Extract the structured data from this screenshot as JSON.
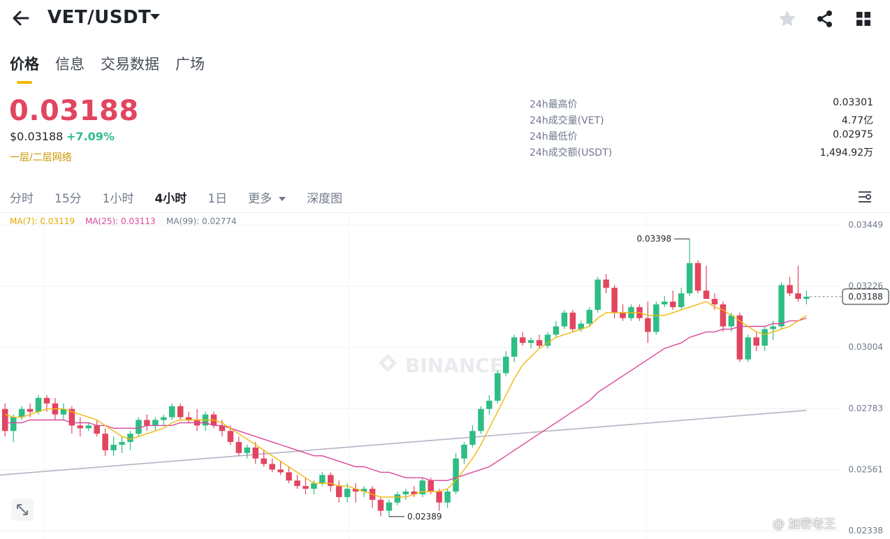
{
  "header": {
    "pair": "VET/USDT"
  },
  "tabs": [
    {
      "label": "价格",
      "active": true
    },
    {
      "label": "信息",
      "active": false
    },
    {
      "label": "交易数据",
      "active": false
    },
    {
      "label": "广场",
      "active": false
    }
  ],
  "price": {
    "last": "0.03188",
    "usd": "$0.03188",
    "change": "+7.09%",
    "network": "一层/二层网络"
  },
  "stats": [
    {
      "label": "24h最高价",
      "value": "0.03301"
    },
    {
      "label": "24h成交量(VET)",
      "value": "4.77亿"
    },
    {
      "label": "24h最低价",
      "value": "0.02975"
    },
    {
      "label": "24h成交额(USDT)",
      "value": "1,494.92万"
    }
  ],
  "intervals": [
    {
      "label": "分时",
      "active": false
    },
    {
      "label": "15分",
      "active": false
    },
    {
      "label": "1小时",
      "active": false
    },
    {
      "label": "4小时",
      "active": true
    },
    {
      "label": "1日",
      "active": false
    },
    {
      "label": "更多",
      "active": false
    },
    {
      "label": "深度图",
      "active": false
    }
  ],
  "ma": [
    {
      "label": "MA(7): 0.03119",
      "color": "#f0b90b"
    },
    {
      "label": "MA(25): 0.03113",
      "color": "#d9479a"
    },
    {
      "label": "MA(99): 0.02774",
      "color": "#8f8a9e"
    }
  ],
  "watermark_logo": "BINANCE",
  "footer_watermark": "@ 加密老王",
  "colors": {
    "up": "#2ebd85",
    "down": "#e2455f",
    "accent": "#f0b90b"
  },
  "chart_data": {
    "type": "candlestick",
    "y_ticks": [
      "0.03449",
      "0.03226",
      "0.03004",
      "0.02783",
      "0.02561",
      "0.02338"
    ],
    "y_range": [
      0.02338,
      0.03449
    ],
    "last_price_tag": "0.03188",
    "high_marker": {
      "label": "0.03398",
      "value": 0.03398
    },
    "low_marker": {
      "label": "0.02389",
      "value": 0.02389
    },
    "candles": [
      [
        0.0278,
        0.028,
        0.0268,
        0.027
      ],
      [
        0.027,
        0.0276,
        0.0266,
        0.0275
      ],
      [
        0.0275,
        0.0279,
        0.0274,
        0.0278
      ],
      [
        0.0278,
        0.028,
        0.0275,
        0.0277
      ],
      [
        0.0277,
        0.0283,
        0.0276,
        0.0282
      ],
      [
        0.0282,
        0.0283,
        0.0277,
        0.028
      ],
      [
        0.028,
        0.0282,
        0.0274,
        0.0276
      ],
      [
        0.0276,
        0.028,
        0.0274,
        0.0278
      ],
      [
        0.0278,
        0.0279,
        0.0269,
        0.0272
      ],
      [
        0.0272,
        0.0275,
        0.0268,
        0.0271
      ],
      [
        0.0271,
        0.0273,
        0.027,
        0.0272
      ],
      [
        0.0272,
        0.0274,
        0.0268,
        0.0269
      ],
      [
        0.0269,
        0.0271,
        0.0261,
        0.0263
      ],
      [
        0.0263,
        0.0268,
        0.0261,
        0.0265
      ],
      [
        0.0265,
        0.0268,
        0.0262,
        0.0266
      ],
      [
        0.0266,
        0.027,
        0.0263,
        0.0269
      ],
      [
        0.0269,
        0.0275,
        0.0268,
        0.0274
      ],
      [
        0.0274,
        0.0276,
        0.027,
        0.0272
      ],
      [
        0.0272,
        0.0275,
        0.027,
        0.0274
      ],
      [
        0.0274,
        0.0276,
        0.0272,
        0.0275
      ],
      [
        0.0275,
        0.028,
        0.0274,
        0.0279
      ],
      [
        0.0279,
        0.028,
        0.0274,
        0.0275
      ],
      [
        0.0275,
        0.0277,
        0.0273,
        0.0274
      ],
      [
        0.0274,
        0.0278,
        0.027,
        0.0272
      ],
      [
        0.0272,
        0.0277,
        0.027,
        0.0276
      ],
      [
        0.0276,
        0.0277,
        0.0271,
        0.0272
      ],
      [
        0.0272,
        0.0274,
        0.0268,
        0.027
      ],
      [
        0.027,
        0.0272,
        0.0265,
        0.0266
      ],
      [
        0.0266,
        0.0268,
        0.0261,
        0.0262
      ],
      [
        0.0262,
        0.0265,
        0.026,
        0.0264
      ],
      [
        0.0264,
        0.0266,
        0.0258,
        0.026
      ],
      [
        0.026,
        0.0263,
        0.0257,
        0.0258
      ],
      [
        0.0258,
        0.026,
        0.0255,
        0.0256
      ],
      [
        0.0256,
        0.0259,
        0.0254,
        0.0255
      ],
      [
        0.0255,
        0.0257,
        0.0251,
        0.0252
      ],
      [
        0.0252,
        0.0254,
        0.0249,
        0.025
      ],
      [
        0.025,
        0.0253,
        0.0247,
        0.0249
      ],
      [
        0.0249,
        0.0252,
        0.0247,
        0.0251
      ],
      [
        0.0251,
        0.0255,
        0.025,
        0.0254
      ],
      [
        0.0254,
        0.0255,
        0.0248,
        0.025
      ],
      [
        0.025,
        0.0252,
        0.0244,
        0.0246
      ],
      [
        0.0246,
        0.0251,
        0.0244,
        0.0249
      ],
      [
        0.0249,
        0.0251,
        0.0244,
        0.0248
      ],
      [
        0.0248,
        0.025,
        0.0246,
        0.0249
      ],
      [
        0.0249,
        0.025,
        0.0242,
        0.0245
      ],
      [
        0.0245,
        0.0246,
        0.0239,
        0.0241
      ],
      [
        0.0241,
        0.0245,
        0.02389,
        0.0244
      ],
      [
        0.0244,
        0.0248,
        0.0243,
        0.0247
      ],
      [
        0.0247,
        0.0249,
        0.0245,
        0.0248
      ],
      [
        0.0248,
        0.025,
        0.0246,
        0.0247
      ],
      [
        0.0247,
        0.0253,
        0.0246,
        0.0252
      ],
      [
        0.0252,
        0.0253,
        0.0247,
        0.0248
      ],
      [
        0.0248,
        0.0249,
        0.0241,
        0.0244
      ],
      [
        0.0244,
        0.0249,
        0.0242,
        0.0248
      ],
      [
        0.0248,
        0.0262,
        0.0247,
        0.026
      ],
      [
        0.026,
        0.0266,
        0.0258,
        0.0265
      ],
      [
        0.0265,
        0.0272,
        0.0264,
        0.027
      ],
      [
        0.027,
        0.0279,
        0.0269,
        0.0278
      ],
      [
        0.0278,
        0.0283,
        0.0276,
        0.0281
      ],
      [
        0.0281,
        0.0292,
        0.028,
        0.0291
      ],
      [
        0.0291,
        0.0299,
        0.029,
        0.0297
      ],
      [
        0.0297,
        0.0305,
        0.0295,
        0.0304
      ],
      [
        0.0304,
        0.0306,
        0.0301,
        0.0302
      ],
      [
        0.0302,
        0.0304,
        0.03,
        0.0303
      ],
      [
        0.0303,
        0.0305,
        0.03,
        0.0301
      ],
      [
        0.0301,
        0.0306,
        0.03,
        0.0305
      ],
      [
        0.0305,
        0.031,
        0.0304,
        0.0308
      ],
      [
        0.0308,
        0.0314,
        0.0307,
        0.0313
      ],
      [
        0.0313,
        0.0314,
        0.0306,
        0.0307
      ],
      [
        0.0307,
        0.031,
        0.0306,
        0.0309
      ],
      [
        0.0309,
        0.0315,
        0.0308,
        0.0314
      ],
      [
        0.0314,
        0.0326,
        0.0313,
        0.0325
      ],
      [
        0.0325,
        0.0327,
        0.032,
        0.0322
      ],
      [
        0.0322,
        0.0323,
        0.0311,
        0.0313
      ],
      [
        0.0313,
        0.0316,
        0.031,
        0.0311
      ],
      [
        0.0311,
        0.0316,
        0.031,
        0.0315
      ],
      [
        0.0315,
        0.0316,
        0.031,
        0.0311
      ],
      [
        0.0311,
        0.0317,
        0.0302,
        0.0306
      ],
      [
        0.0306,
        0.0317,
        0.0305,
        0.0316
      ],
      [
        0.0316,
        0.0319,
        0.0315,
        0.0317
      ],
      [
        0.0317,
        0.0321,
        0.0314,
        0.0315
      ],
      [
        0.0315,
        0.0322,
        0.0314,
        0.032
      ],
      [
        0.032,
        0.03398,
        0.0319,
        0.0331
      ],
      [
        0.0331,
        0.0332,
        0.032,
        0.0321
      ],
      [
        0.0321,
        0.033,
        0.0318,
        0.0318
      ],
      [
        0.0318,
        0.032,
        0.0314,
        0.0316
      ],
      [
        0.0316,
        0.0317,
        0.0306,
        0.0308
      ],
      [
        0.0308,
        0.0313,
        0.0306,
        0.0312
      ],
      [
        0.0312,
        0.0313,
        0.0295,
        0.0296
      ],
      [
        0.0296,
        0.0305,
        0.0295,
        0.0304
      ],
      [
        0.0304,
        0.0306,
        0.0299,
        0.0301
      ],
      [
        0.0301,
        0.0308,
        0.0299,
        0.0307
      ],
      [
        0.0307,
        0.031,
        0.0303,
        0.0308
      ],
      [
        0.0308,
        0.0324,
        0.0307,
        0.0323
      ],
      [
        0.0323,
        0.0326,
        0.0319,
        0.032
      ],
      [
        0.032,
        0.03301,
        0.0317,
        0.0318
      ],
      [
        0.0318,
        0.0321,
        0.0316,
        0.03188
      ]
    ],
    "ma7": [
      0.0276,
      0.0275,
      0.0275,
      0.0276,
      0.0277,
      0.0278,
      0.0278,
      0.0278,
      0.0277,
      0.0276,
      0.0275,
      0.0274,
      0.0272,
      0.027,
      0.0268,
      0.0267,
      0.0268,
      0.0269,
      0.027,
      0.0271,
      0.0273,
      0.0274,
      0.0274,
      0.0274,
      0.0274,
      0.0274,
      0.0273,
      0.0271,
      0.0269,
      0.0267,
      0.0265,
      0.0263,
      0.0261,
      0.0259,
      0.0257,
      0.0255,
      0.0253,
      0.0251,
      0.0251,
      0.0251,
      0.025,
      0.025,
      0.0249,
      0.0248,
      0.0247,
      0.0246,
      0.0246,
      0.0246,
      0.0246,
      0.0247,
      0.0248,
      0.0248,
      0.0248,
      0.0249,
      0.0252,
      0.0256,
      0.026,
      0.0265,
      0.0271,
      0.0277,
      0.0283,
      0.0289,
      0.0294,
      0.0297,
      0.03,
      0.0302,
      0.0304,
      0.0305,
      0.0306,
      0.0307,
      0.0308,
      0.0311,
      0.0313,
      0.0313,
      0.0313,
      0.0313,
      0.0313,
      0.0312,
      0.0312,
      0.0312,
      0.0313,
      0.0314,
      0.0315,
      0.0316,
      0.0317,
      0.0315,
      0.0314,
      0.0312,
      0.031,
      0.0308,
      0.0306,
      0.0305,
      0.0306,
      0.0307,
      0.0308,
      0.031,
      0.0312
    ],
    "ma25": [
      0.0273,
      0.0273,
      0.0273,
      0.0274,
      0.0274,
      0.0274,
      0.0274,
      0.0274,
      0.0273,
      0.0273,
      0.0273,
      0.0272,
      0.0272,
      0.0271,
      0.0271,
      0.0271,
      0.0271,
      0.0272,
      0.0272,
      0.0272,
      0.0272,
      0.0273,
      0.0273,
      0.0273,
      0.0273,
      0.0272,
      0.0272,
      0.0271,
      0.027,
      0.0269,
      0.0268,
      0.0267,
      0.0266,
      0.0265,
      0.0264,
      0.0263,
      0.0262,
      0.0261,
      0.0261,
      0.026,
      0.0259,
      0.0258,
      0.0257,
      0.0257,
      0.0256,
      0.0255,
      0.0255,
      0.0254,
      0.0253,
      0.0253,
      0.0253,
      0.0252,
      0.0252,
      0.0252,
      0.0253,
      0.0254,
      0.0255,
      0.0256,
      0.0257,
      0.0259,
      0.0261,
      0.0263,
      0.0265,
      0.0267,
      0.0269,
      0.0271,
      0.0273,
      0.0275,
      0.0277,
      0.0279,
      0.0281,
      0.0284,
      0.0286,
      0.0288,
      0.029,
      0.0292,
      0.0294,
      0.0296,
      0.0298,
      0.03,
      0.0301,
      0.0302,
      0.0304,
      0.0305,
      0.0306,
      0.0306,
      0.0307,
      0.0307,
      0.0308,
      0.0308,
      0.0308,
      0.0308,
      0.0309,
      0.0309,
      0.031,
      0.031,
      0.0311
    ],
    "ma99": [
      0.0254,
      0.02775
    ]
  }
}
